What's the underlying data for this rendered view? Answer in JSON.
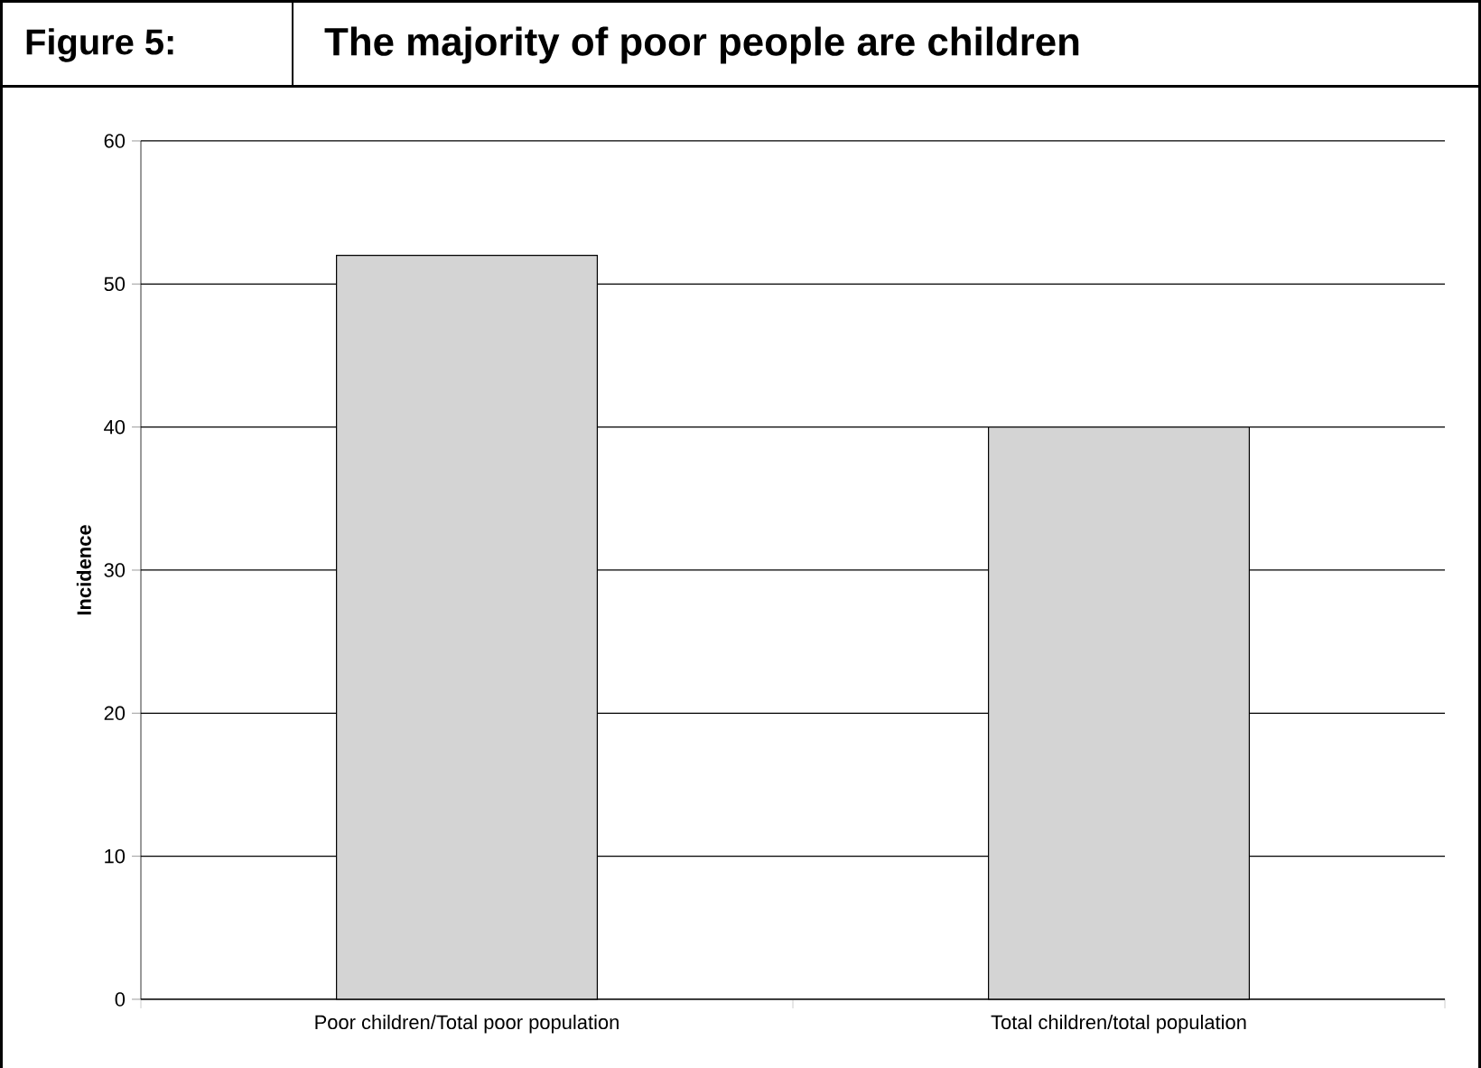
{
  "chart_data": {
    "type": "bar",
    "title": "The majority of poor people are children",
    "annotations": [
      "Figure 5:"
    ],
    "ylabel": "Incidence",
    "categories": [
      "Poor children/Total poor population",
      "Total children/total population"
    ],
    "values": [
      52,
      40
    ],
    "color": "#d4d4d4",
    "ylim": [
      0,
      60
    ],
    "yticks": [
      0,
      10,
      20,
      30,
      40,
      50,
      60
    ],
    "grid": "y"
  }
}
